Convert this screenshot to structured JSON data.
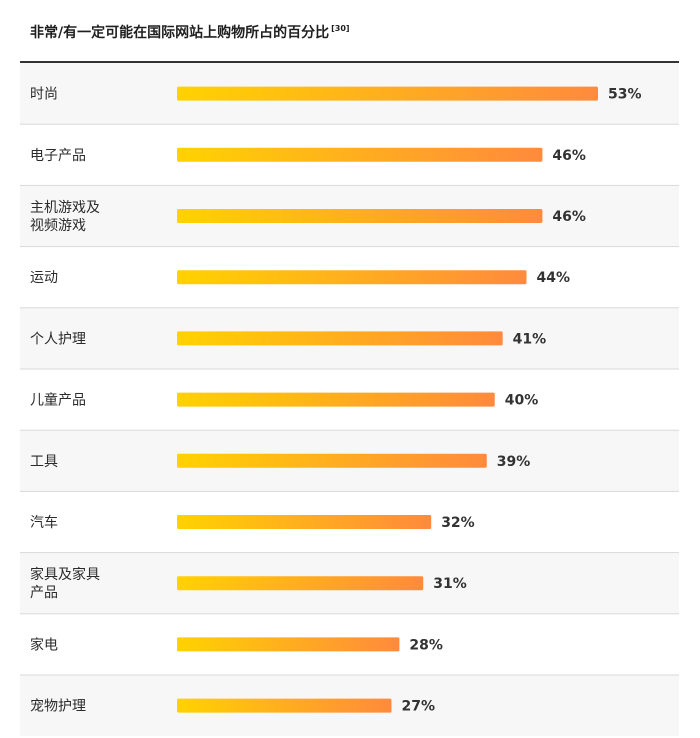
{
  "chart_data": {
    "type": "bar",
    "orientation": "horizontal",
    "title": "非常/有一定可能在国际网站上购物所占的百分比",
    "title_reference": "[30]",
    "categories": [
      [
        "时尚"
      ],
      [
        "电子产品"
      ],
      [
        "主机游戏及",
        "视频游戏"
      ],
      [
        "运动"
      ],
      [
        "个人护理"
      ],
      [
        "儿童产品"
      ],
      [
        "工具"
      ],
      [
        "汽车"
      ],
      [
        "家具及家具",
        "产品"
      ],
      [
        "家电"
      ],
      [
        "宠物护理"
      ]
    ],
    "values": [
      53,
      46,
      46,
      44,
      41,
      40,
      39,
      32,
      31,
      28,
      27
    ],
    "value_labels": [
      "53%",
      "46%",
      "46%",
      "44%",
      "41%",
      "40%",
      "39%",
      "32%",
      "31%",
      "28%",
      "27%"
    ],
    "unit": "%",
    "xlim": [
      0,
      53
    ],
    "bar_gradient": [
      "#ffd200",
      "#ff8a3d"
    ],
    "row_alt_color": "#f7f7f7",
    "divider_color": "#d9d9d9"
  }
}
